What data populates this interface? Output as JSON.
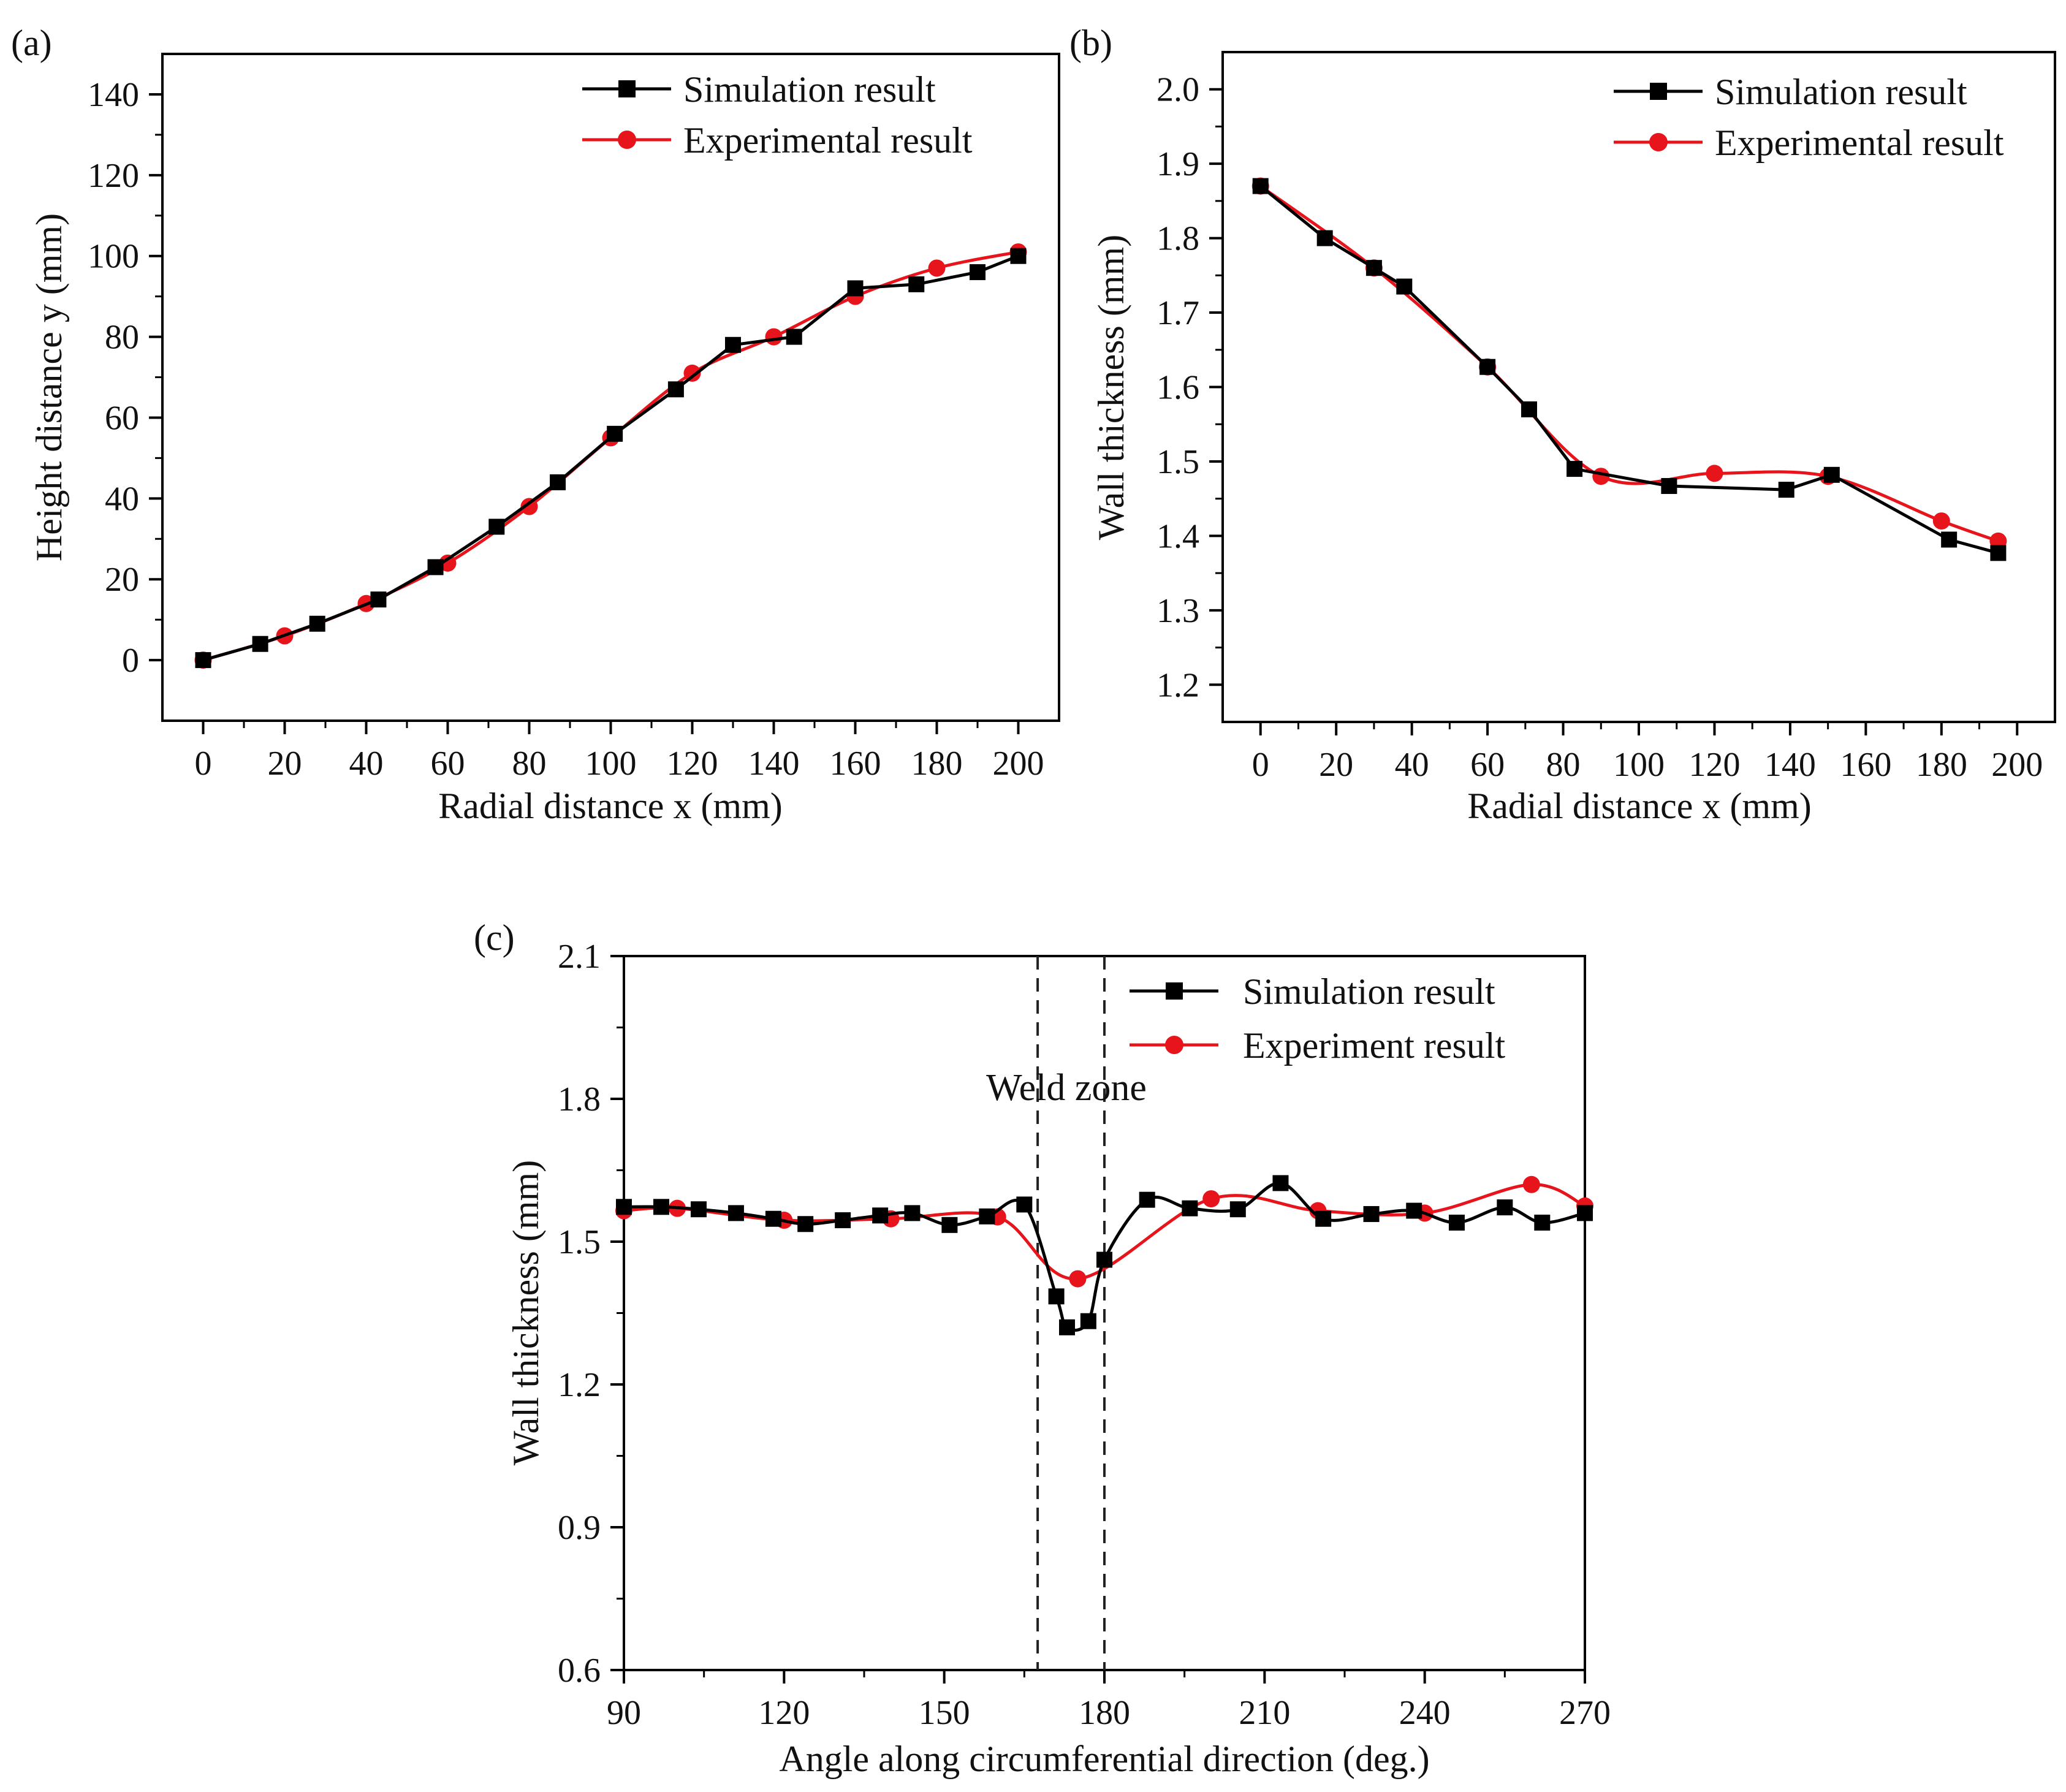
{
  "chart_data": [
    {
      "type": "line",
      "panel_label": "(a)",
      "title": "",
      "xlabel": "Radial distance x (mm)",
      "ylabel": "Height distance y (mm)",
      "xlim": [
        -10,
        210
      ],
      "ylim": [
        -15,
        150
      ],
      "xticks": [
        0,
        20,
        40,
        60,
        80,
        100,
        120,
        140,
        160,
        180,
        200
      ],
      "yticks": [
        0,
        20,
        40,
        60,
        80,
        100,
        120,
        140
      ],
      "grid": false,
      "legend_position": "top-right",
      "series": [
        {
          "name": "Simulation result",
          "color": "#000000",
          "marker": "square",
          "smooth": false,
          "x": [
            0,
            14,
            28,
            43,
            57,
            72,
            87,
            101,
            116,
            130,
            145,
            160,
            175,
            190,
            200
          ],
          "y": [
            0,
            4,
            9,
            15,
            23,
            33,
            44,
            56,
            67,
            78,
            80,
            92,
            93,
            96,
            100
          ]
        },
        {
          "name": "Experimental result",
          "color": "#e8141b",
          "marker": "circle",
          "smooth": true,
          "x": [
            0,
            20,
            40,
            60,
            80,
            100,
            120,
            140,
            160,
            180,
            200
          ],
          "y": [
            0,
            6,
            14,
            24,
            38,
            55,
            71,
            80,
            90,
            97,
            101
          ]
        }
      ]
    },
    {
      "type": "line",
      "panel_label": "(b)",
      "title": "",
      "xlabel": "Radial distance x (mm)",
      "ylabel": "Wall thickness (mm)",
      "xlim": [
        -10,
        210
      ],
      "ylim": [
        1.15,
        2.05
      ],
      "xticks": [
        0,
        20,
        40,
        60,
        80,
        100,
        120,
        140,
        160,
        180,
        200
      ],
      "yticks": [
        1.2,
        1.3,
        1.4,
        1.5,
        1.6,
        1.7,
        1.8,
        1.9,
        2.0
      ],
      "grid": false,
      "legend_position": "top-right",
      "series": [
        {
          "name": "Simulation result",
          "color": "#000000",
          "marker": "square",
          "smooth": false,
          "x": [
            0,
            17,
            30,
            38,
            60,
            71,
            83,
            108,
            139,
            151,
            182,
            195
          ],
          "y": [
            1.87,
            1.8,
            1.76,
            1.735,
            1.627,
            1.57,
            1.49,
            1.467,
            1.462,
            1.482,
            1.395,
            1.377
          ]
        },
        {
          "name": "Experimental result",
          "color": "#e8141b",
          "marker": "circle",
          "smooth": true,
          "x": [
            0,
            30,
            60,
            90,
            120,
            150,
            180,
            195
          ],
          "y": [
            1.87,
            1.76,
            1.627,
            1.48,
            1.484,
            1.48,
            1.42,
            1.393
          ]
        }
      ]
    },
    {
      "type": "line",
      "panel_label": "(c)",
      "title": "",
      "xlabel": "Angle along circumferential direction (deg.)",
      "ylabel": "Wall thickness (mm)",
      "xlim": [
        90,
        270
      ],
      "ylim": [
        0.6,
        2.1
      ],
      "xticks": [
        90,
        120,
        150,
        180,
        210,
        240,
        270
      ],
      "yticks": [
        0.6,
        0.9,
        1.2,
        1.5,
        1.8,
        2.1
      ],
      "grid": false,
      "legend_position": "top-right",
      "annotation": "Weld zone",
      "weld_zone_bounds_deg": [
        167.5,
        180
      ],
      "series": [
        {
          "name": "Simulation result",
          "color": "#000000",
          "marker": "square",
          "smooth": true,
          "x": [
            90,
            97,
            104,
            111,
            118,
            124,
            131,
            138,
            144,
            151,
            158,
            165,
            171,
            173,
            177,
            180,
            188,
            196,
            205,
            213,
            221,
            230,
            238,
            246,
            255,
            262,
            270
          ],
          "y": [
            1.573,
            1.573,
            1.568,
            1.56,
            1.548,
            1.537,
            1.545,
            1.555,
            1.56,
            1.535,
            1.553,
            1.578,
            1.385,
            1.32,
            1.333,
            1.462,
            1.588,
            1.57,
            1.568,
            1.623,
            1.548,
            1.558,
            1.565,
            1.54,
            1.572,
            1.54,
            1.56
          ]
        },
        {
          "name": "Experiment result",
          "color": "#e8141b",
          "marker": "circle",
          "smooth": true,
          "x": [
            90,
            100,
            120,
            140,
            160,
            175,
            200,
            220,
            240,
            260,
            270
          ],
          "y": [
            1.565,
            1.57,
            1.545,
            1.548,
            1.552,
            1.422,
            1.59,
            1.565,
            1.56,
            1.62,
            1.575
          ]
        }
      ]
    }
  ]
}
